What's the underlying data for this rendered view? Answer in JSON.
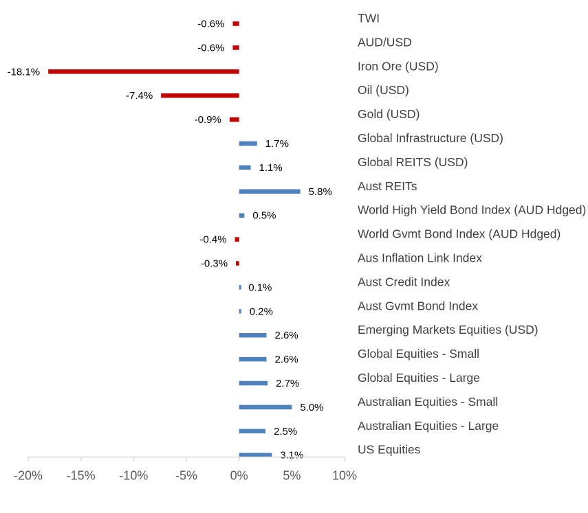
{
  "chart_data": {
    "type": "bar",
    "orientation": "horizontal",
    "categories": [
      "TWI",
      "AUD/USD",
      "Iron Ore (USD)",
      "Oil (USD)",
      "Gold (USD)",
      "Global Infrastructure (USD)",
      "Global REITS (USD)",
      "Aust REITs",
      "World High Yield Bond Index (AUD Hdged)",
      "World Gvmt Bond Index (AUD Hdged)",
      "Aus Inflation Link Index",
      "Aust Credit Index",
      "Aust Gvmt Bond Index",
      "Emerging Markets Equities (USD)",
      "Global Equities - Small",
      "Global Equities - Large",
      "Australian Equities - Small",
      "Australian Equities - Large",
      "US Equities"
    ],
    "values": [
      -0.6,
      -0.6,
      -18.1,
      -7.4,
      -0.9,
      1.7,
      1.1,
      5.8,
      0.5,
      -0.4,
      -0.3,
      0.1,
      0.2,
      2.6,
      2.6,
      2.7,
      5.0,
      2.5,
      3.1
    ],
    "value_labels": [
      "-0.6%",
      "-0.6%",
      "-18.1%",
      "-7.4%",
      "-0.9%",
      "1.7%",
      "1.1%",
      "5.8%",
      "0.5%",
      "-0.4%",
      "-0.3%",
      "0.1%",
      "0.2%",
      "2.6%",
      "2.6%",
      "2.7%",
      "5.0%",
      "2.5%",
      "3.1%"
    ],
    "x_ticks": [
      -20,
      -15,
      -10,
      -5,
      0,
      5,
      10
    ],
    "x_tick_labels": [
      "-20%",
      "-15%",
      "-10%",
      "-5%",
      "0%",
      "5%",
      "10%"
    ],
    "xlim": [
      -20,
      10
    ],
    "title": "",
    "xlabel": "",
    "ylabel": "",
    "grid": false,
    "legend": "none",
    "colors": {
      "positive": "#4F81BD",
      "negative": "#C00000",
      "axis": "#D9D9D9",
      "category_text": "#404040",
      "tick_text": "#595959",
      "value_text": "#000000"
    }
  }
}
